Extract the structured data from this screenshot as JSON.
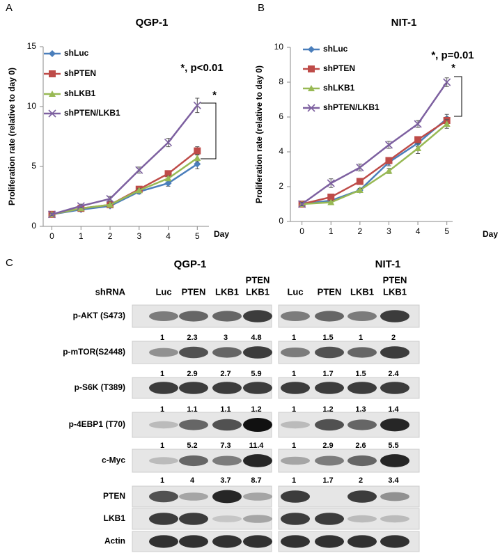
{
  "chart_data": [
    {
      "type": "line",
      "panel": "A",
      "title": "QGP-1",
      "y_label": "Proliferation rate (relative to day 0)",
      "x_label": "Day",
      "x": [
        0,
        1,
        2,
        3,
        4,
        5
      ],
      "xlim": [
        -0.3,
        5.4
      ],
      "xticks": [
        0,
        1,
        2,
        3,
        4,
        5
      ],
      "ylim": [
        0,
        15
      ],
      "yticks": [
        0,
        5,
        10,
        15
      ],
      "series": [
        {
          "name": "shLuc",
          "color": "#4a7ebb",
          "marker": "diamond",
          "values": [
            1,
            1.4,
            1.7,
            2.9,
            3.6,
            5.2
          ],
          "errors": [
            0.1,
            0.1,
            0.15,
            0.2,
            0.25,
            0.4
          ]
        },
        {
          "name": "shPTEN",
          "color": "#be4b48",
          "marker": "square",
          "values": [
            1,
            1.5,
            1.8,
            3.1,
            4.4,
            6.3
          ],
          "errors": [
            0.1,
            0.1,
            0.1,
            0.15,
            0.2,
            0.35
          ]
        },
        {
          "name": "shLKB1",
          "color": "#98b954",
          "marker": "triangle",
          "values": [
            1,
            1.5,
            1.8,
            3.0,
            4.0,
            5.7
          ],
          "errors": [
            0.1,
            0.1,
            0.1,
            0.15,
            0.2,
            0.3
          ]
        },
        {
          "name": "shPTEN/LKB1",
          "color": "#7d60a0",
          "marker": "x",
          "values": [
            1,
            1.7,
            2.3,
            4.7,
            7.0,
            10.1
          ],
          "errors": [
            0.1,
            0.15,
            0.2,
            0.25,
            0.35,
            0.6
          ]
        }
      ],
      "annotations": [
        "*, p<0.01",
        "*"
      ]
    },
    {
      "type": "line",
      "panel": "B",
      "title": "NIT-1",
      "y_label": "Proliferation rate (relative to day 0)",
      "x_label": "Day",
      "x": [
        0,
        1,
        2,
        3,
        4,
        5
      ],
      "xlim": [
        -0.4,
        5.2
      ],
      "xticks": [
        0,
        1,
        2,
        3,
        4,
        5
      ],
      "ylim": [
        0,
        10
      ],
      "yticks": [
        0,
        2,
        4,
        6,
        8,
        10
      ],
      "series": [
        {
          "name": "shLuc",
          "color": "#4a7ebb",
          "marker": "diamond",
          "values": [
            1,
            1.2,
            1.8,
            3.4,
            4.5,
            5.9
          ],
          "errors": [
            0.1,
            0.1,
            0.1,
            0.2,
            0.2,
            0.25
          ]
        },
        {
          "name": "shPTEN",
          "color": "#be4b48",
          "marker": "square",
          "values": [
            1,
            1.4,
            2.3,
            3.5,
            4.7,
            5.8
          ],
          "errors": [
            0.1,
            0.1,
            0.1,
            0.15,
            0.15,
            0.2
          ]
        },
        {
          "name": "shLKB1",
          "color": "#98b954",
          "marker": "triangle",
          "values": [
            1,
            1.1,
            1.8,
            2.9,
            4.2,
            5.6
          ],
          "errors": [
            0.1,
            0.1,
            0.1,
            0.15,
            0.3,
            0.25
          ]
        },
        {
          "name": "shPTEN/LKB1",
          "color": "#7d60a0",
          "marker": "x",
          "values": [
            1,
            2.2,
            3.1,
            4.4,
            5.6,
            8.0
          ],
          "errors": [
            0.1,
            0.25,
            0.2,
            0.2,
            0.2,
            0.25
          ]
        }
      ],
      "annotations": [
        "*, p=0.01",
        "*"
      ]
    }
  ],
  "blot": {
    "panel": "C",
    "cell_lines": [
      "QGP-1",
      "NIT-1"
    ],
    "header": "shRNA",
    "lanes": [
      [
        "Luc"
      ],
      [
        "PTEN"
      ],
      [
        "LKB1"
      ],
      [
        "PTEN",
        "LKB1"
      ]
    ],
    "rows": [
      {
        "label": "p-AKT (S473)",
        "quant": [
          [
            1,
            2.3,
            3,
            4.8
          ],
          [
            1,
            1.5,
            1,
            2
          ]
        ]
      },
      {
        "label": "p-mTOR(S2448)",
        "quant": [
          [
            1,
            2.9,
            2.7,
            5.9
          ],
          [
            1,
            1.7,
            1.5,
            2.4
          ]
        ]
      },
      {
        "label": "p-S6K (T389)",
        "quant": [
          [
            1,
            1.1,
            1.1,
            1.2
          ],
          [
            1,
            1.2,
            1.3,
            1.4
          ]
        ]
      },
      {
        "label": "p-4EBP1 (T70)",
        "quant": [
          [
            1,
            5.2,
            7.3,
            11.4
          ],
          [
            1,
            2.9,
            2.6,
            5.5
          ]
        ]
      },
      {
        "label": "c-Myc",
        "quant": [
          [
            1,
            4,
            3.7,
            8.7
          ],
          [
            1,
            1.7,
            2,
            3.4
          ]
        ]
      },
      {
        "label": "PTEN"
      },
      {
        "label": "LKB1"
      },
      {
        "label": "Actin"
      }
    ]
  }
}
